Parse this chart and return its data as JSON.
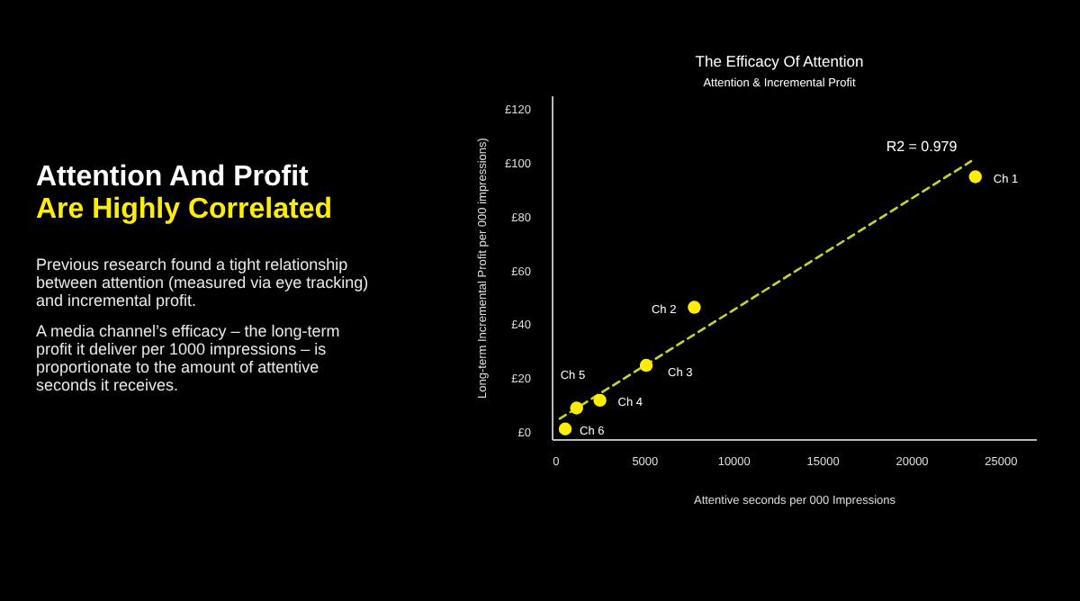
{
  "chart_data": [
    {
      "type": "other",
      "title": "Attention And Profit",
      "subtitle": "Are Highly Correlated",
      "annotations": [
        "Previous research found a tight relationship between attention (measured via eye tracking) and incremental profit.",
        "A media channel’s efficacy – the long-term profit it deliver per 1000 impressions – is proportionate to the amount of attentive seconds it receives."
      ]
    },
    {
      "type": "scatter",
      "title": "The Efficacy Of Attention",
      "subtitle": "Attention & Incremental Profit",
      "xlabel": "Attentive seconds per 000 Impressions",
      "ylabel": "Long-term Incremental Profit per 000 impressions)",
      "xlim": [
        -200,
        27000
      ],
      "ylim": [
        -3,
        125
      ],
      "xticks": [
        0,
        5000,
        10000,
        15000,
        20000,
        25000
      ],
      "yticks": [
        {
          "value": 0,
          "label": "£0"
        },
        {
          "value": 20,
          "label": "£20"
        },
        {
          "value": 40,
          "label": "£40"
        },
        {
          "value": 60,
          "label": "£60"
        },
        {
          "value": 80,
          "label": "£80"
        },
        {
          "value": 100,
          "label": "£100"
        },
        {
          "value": 120,
          "label": "£120"
        }
      ],
      "grid": false,
      "series": [
        {
          "type": "line",
          "color": "#c8d42a",
          "line_style": "dashed",
          "marker": "none",
          "x": [
            200,
            23310
          ],
          "values": [
            4.9,
            100.8
          ]
        },
        {
          "type": "scatter",
          "color": "#ffee00",
          "marker": "circle",
          "x": [
            23550,
            7760,
            5060,
            2460,
            1150,
            510
          ],
          "values": [
            95,
            46.4,
            24.8,
            11.8,
            8.9,
            1.1
          ]
        }
      ],
      "annotations": [
        {
          "text": "Ch 1",
          "x": 23550,
          "y": 95
        },
        {
          "text": "Ch 2",
          "x": 7760,
          "y": 46.4
        },
        {
          "text": "Ch 3",
          "x": 5060,
          "y": 24.8
        },
        {
          "text": "Ch 4",
          "x": 2460,
          "y": 11.8
        },
        {
          "text": "Ch 5",
          "x": 1150,
          "y": 8.9
        },
        {
          "text": "Ch 6",
          "x": 510,
          "y": 1.1
        },
        "R2 = 0.979"
      ]
    }
  ]
}
